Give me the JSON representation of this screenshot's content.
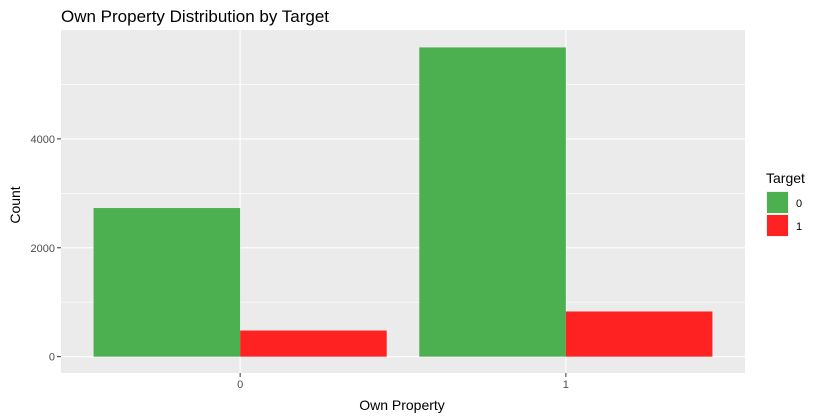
{
  "chart_data": {
    "type": "bar",
    "title": "Own Property Distribution by Target",
    "xlabel": "Own Property",
    "ylabel": "Count",
    "categories": [
      "0",
      "1"
    ],
    "series": [
      {
        "name": "0",
        "color": "#4CAF50",
        "values": [
          2730,
          5680
        ]
      },
      {
        "name": "1",
        "color": "#FF2222",
        "values": [
          480,
          830
        ]
      }
    ],
    "yticks": [
      0,
      2000,
      4000
    ],
    "ylim": [
      -300,
      6000
    ],
    "grid": true,
    "legend": {
      "title": "Target",
      "position": "right"
    },
    "colors": {
      "panel": "#EBEBEB",
      "grid": "#FFFFFF"
    }
  }
}
